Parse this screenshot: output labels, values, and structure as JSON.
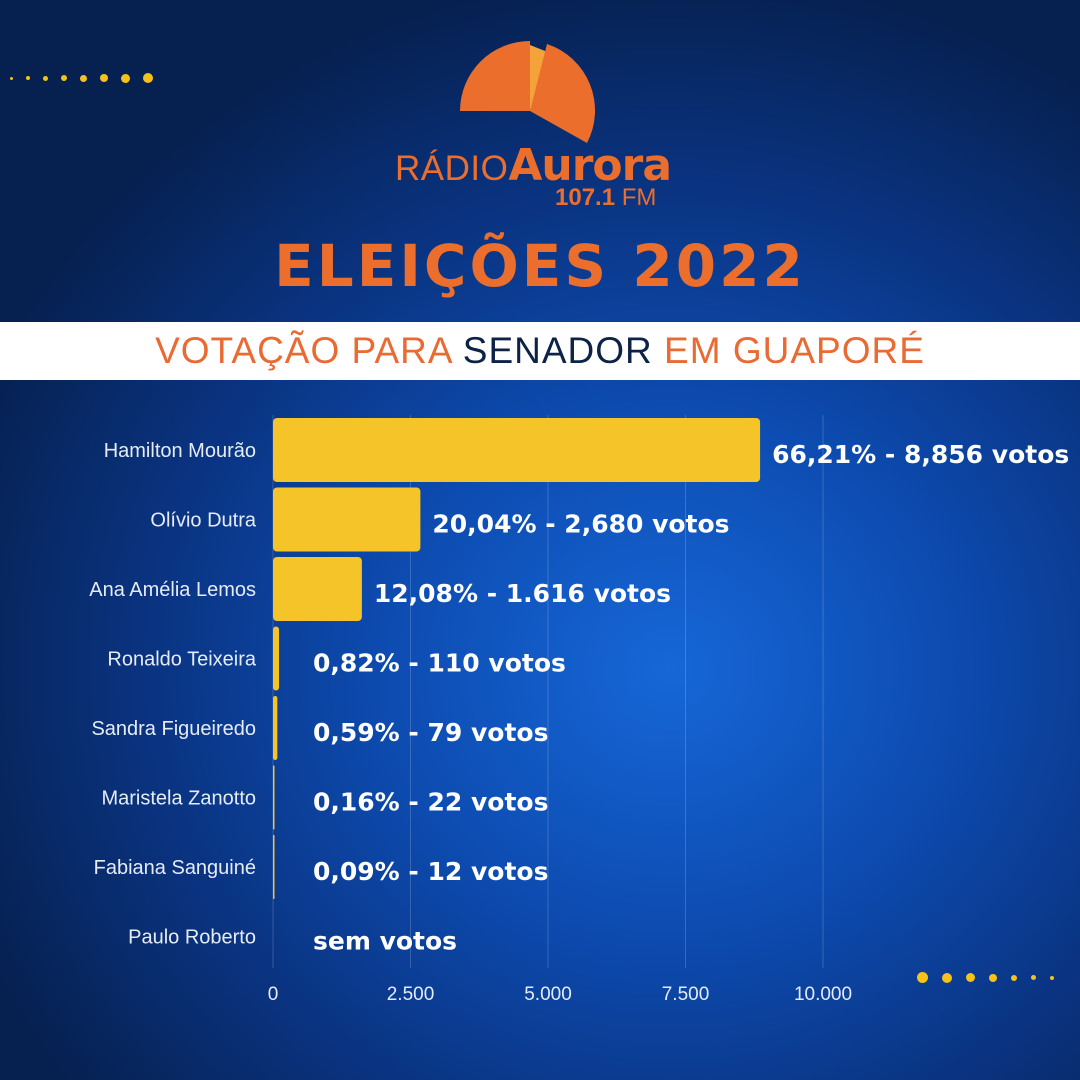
{
  "brand": {
    "radio": "RÁDIO",
    "name": "Aurora",
    "frequency": "107.1",
    "band": "FM",
    "logo_icon": "aurora-sun-icon"
  },
  "headline": "ELEIÇÕES 2022",
  "subtitle": {
    "part1": "VOTAÇÃO PARA ",
    "part2": "SENADOR",
    "part3": " EM GUAPORÉ"
  },
  "colors": {
    "accent_orange": "#ec6e2d",
    "bar_yellow": "#f5c428",
    "navy": "#0d2247",
    "background_blue": "#0d4bb0"
  },
  "chart_data": {
    "type": "bar",
    "orientation": "horizontal",
    "categories": [
      "Hamilton Mourão",
      "Olívio Dutra",
      "Ana Amélia Lemos",
      "Ronaldo Teixeira",
      "Sandra Figueiredo",
      "Maristela Zanotto",
      "Fabiana Sanguiné",
      "Paulo Roberto"
    ],
    "values": [
      8856,
      2680,
      1616,
      110,
      79,
      22,
      12,
      0
    ],
    "data_labels": [
      "66,21% - 8,856 votos",
      "20,04% - 2,680 votos",
      "12,08% - 1.616 votos",
      "0,82% - 110 votos",
      "0,59% - 79 votos",
      "0,16% - 22 votos",
      "0,09% - 12 votos",
      "sem votos"
    ],
    "xlim": [
      0,
      10000
    ],
    "xticks": [
      0,
      2500,
      5000,
      7500,
      10000
    ],
    "xtick_labels": [
      "0",
      "2.500",
      "5.000",
      "7.500",
      "10.000"
    ],
    "grid": "vertical",
    "legend": "none"
  }
}
